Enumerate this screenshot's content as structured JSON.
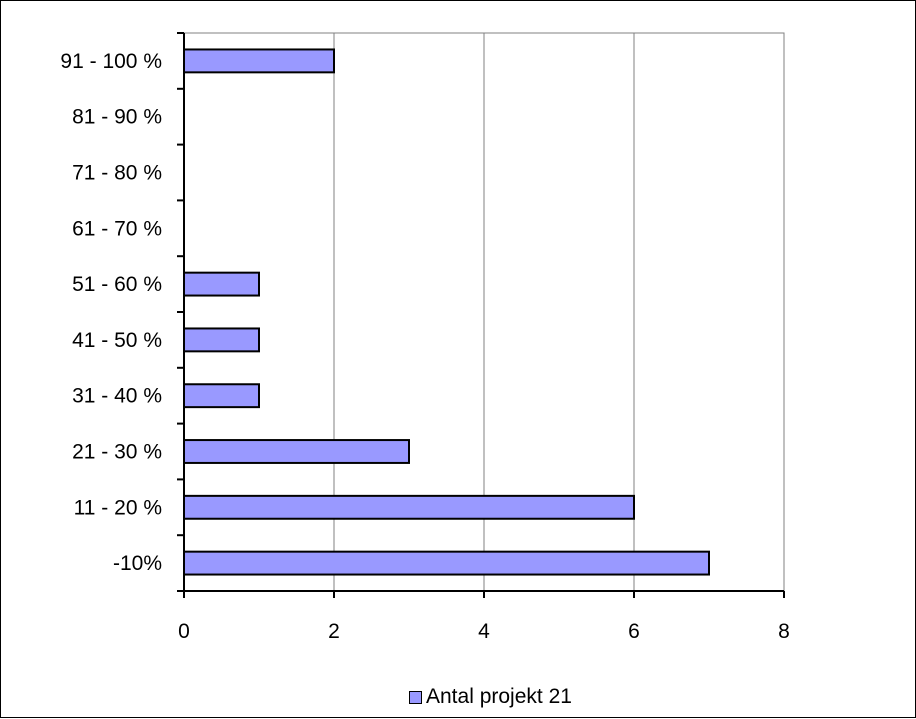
{
  "chart_data": {
    "type": "bar",
    "orientation": "horizontal",
    "categories": [
      "-10%",
      "11 - 20 %",
      "21 - 30 %",
      "31 - 40 %",
      "41 - 50 %",
      "51 - 60 %",
      "61 - 70 %",
      "71 - 80 %",
      "81 - 90 %",
      "91 - 100 %"
    ],
    "series": [
      {
        "name": "Antal projekt 21",
        "values": [
          7,
          6,
          3,
          1,
          1,
          1,
          0,
          0,
          0,
          2
        ],
        "color": "#9999ff"
      }
    ],
    "title": "",
    "xlabel": "",
    "ylabel": "",
    "xlim": [
      0,
      8
    ],
    "xticks": [
      0,
      2,
      4,
      6,
      8
    ],
    "grid": "vertical",
    "gridline_color": "#c0c0c0",
    "legend_position": "bottom"
  }
}
